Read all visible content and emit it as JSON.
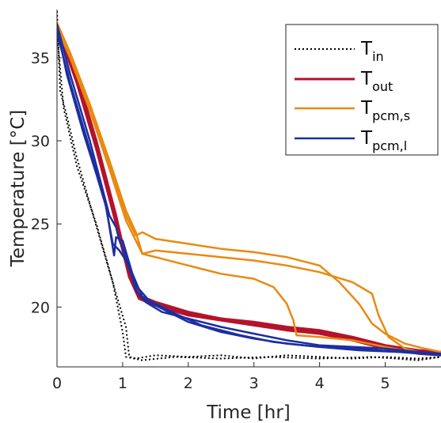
{
  "chart_data": {
    "type": "line",
    "xlabel": "Time [hr]",
    "ylabel": "Temperature [°C]",
    "xlim": [
      0,
      5.85
    ],
    "ylim": [
      16.4,
      37.9
    ],
    "x_ticks": [
      "0",
      "1",
      "2",
      "3",
      "4",
      "5"
    ],
    "y_ticks": [
      "20",
      "25",
      "30",
      "35"
    ],
    "grid": false,
    "legend_position": "top-right",
    "colors": {
      "T_in": "#000000",
      "T_out": "#b5122c",
      "T_pcm_s": "#e88a12",
      "T_pcm_l": "#1c2fa0"
    },
    "legend": [
      {
        "key": "T_in",
        "main": "T",
        "sub": "in",
        "style": "dotted"
      },
      {
        "key": "T_out",
        "main": "T",
        "sub": "out",
        "style": "solid"
      },
      {
        "key": "T_pcm_s",
        "main": "T",
        "sub": "pcm,s",
        "style": "solid"
      },
      {
        "key": "T_pcm_l",
        "main": "T",
        "sub": "pcm,l",
        "style": "solid"
      }
    ],
    "series": [
      {
        "key": "T_in",
        "width": 2,
        "dash": "2,3",
        "traces": [
          [
            [
              0,
              37.8
            ],
            [
              0.05,
              33
            ],
            [
              0.15,
              31.5
            ],
            [
              0.3,
              29
            ],
            [
              0.5,
              26.2
            ],
            [
              0.7,
              23.5
            ],
            [
              0.9,
              20.8
            ],
            [
              1.05,
              18.8
            ],
            [
              1.1,
              17
            ],
            [
              1.2,
              16.9
            ],
            [
              1.5,
              17.1
            ],
            [
              2,
              17
            ],
            [
              2.5,
              17.1
            ],
            [
              3,
              16.9
            ],
            [
              3.5,
              17.1
            ],
            [
              4,
              17
            ],
            [
              4.5,
              16.9
            ],
            [
              5,
              17
            ],
            [
              5.5,
              16.9
            ],
            [
              5.85,
              17
            ]
          ],
          [
            [
              0,
              36.5
            ],
            [
              0.1,
              32
            ],
            [
              0.3,
              28.5
            ],
            [
              0.6,
              25
            ],
            [
              0.85,
              21.5
            ],
            [
              1.0,
              18.5
            ],
            [
              1.05,
              17
            ],
            [
              1.3,
              16.8
            ],
            [
              1.8,
              17
            ],
            [
              2.5,
              16.9
            ],
            [
              3.2,
              17
            ],
            [
              4,
              16.9
            ],
            [
              4.8,
              17
            ],
            [
              5.5,
              16.8
            ],
            [
              5.85,
              17
            ]
          ]
        ]
      },
      {
        "key": "T_out",
        "width": 3,
        "traces": [
          [
            [
              0,
              37
            ],
            [
              0.3,
              34
            ],
            [
              0.6,
              30
            ],
            [
              0.9,
              25.5
            ],
            [
              1.1,
              22
            ],
            [
              1.25,
              20.6
            ],
            [
              1.5,
              20.2
            ],
            [
              2,
              19.6
            ],
            [
              2.5,
              19.3
            ],
            [
              3,
              19
            ],
            [
              3.5,
              18.7
            ],
            [
              4,
              18.5
            ],
            [
              4.5,
              18.1
            ],
            [
              5,
              17.6
            ],
            [
              5.5,
              17.3
            ],
            [
              5.85,
              17.2
            ]
          ],
          [
            [
              0,
              36.8
            ],
            [
              0.3,
              33.5
            ],
            [
              0.6,
              29.5
            ],
            [
              0.9,
              25
            ],
            [
              1.1,
              21.8
            ],
            [
              1.25,
              20.5
            ],
            [
              1.5,
              20.1
            ],
            [
              2,
              19.5
            ],
            [
              2.5,
              19.2
            ],
            [
              3,
              18.9
            ],
            [
              3.5,
              18.6
            ],
            [
              4,
              18.4
            ],
            [
              4.5,
              18
            ],
            [
              5,
              17.5
            ],
            [
              5.5,
              17.2
            ],
            [
              5.85,
              17.1
            ]
          ],
          [
            [
              0,
              36.9
            ],
            [
              0.3,
              33.8
            ],
            [
              0.6,
              29.8
            ],
            [
              0.9,
              25.2
            ],
            [
              1.1,
              22.2
            ],
            [
              1.25,
              20.7
            ],
            [
              1.5,
              20.3
            ],
            [
              2,
              19.7
            ],
            [
              2.5,
              19.3
            ],
            [
              3,
              19.1
            ],
            [
              3.5,
              18.8
            ],
            [
              4,
              18.6
            ],
            [
              4.5,
              18.2
            ],
            [
              5,
              17.7
            ],
            [
              5.5,
              17.4
            ],
            [
              5.85,
              17.3
            ]
          ]
        ]
      },
      {
        "key": "T_pcm_s",
        "width": 2.5,
        "traces": [
          [
            [
              0,
              37
            ],
            [
              0.2,
              35.2
            ],
            [
              0.5,
              32
            ],
            [
              0.8,
              28.5
            ],
            [
              1.05,
              25.5
            ],
            [
              1.2,
              24.3
            ],
            [
              1.3,
              24.5
            ],
            [
              1.5,
              24.1
            ],
            [
              2,
              23.8
            ],
            [
              2.5,
              23.5
            ],
            [
              3,
              23.3
            ],
            [
              3.5,
              23
            ],
            [
              4,
              22.5
            ],
            [
              4.3,
              21.5
            ],
            [
              4.6,
              20.2
            ],
            [
              4.8,
              19
            ],
            [
              5,
              18.4
            ],
            [
              5.3,
              17.8
            ],
            [
              5.6,
              17.5
            ],
            [
              5.85,
              17.3
            ]
          ],
          [
            [
              0,
              36.8
            ],
            [
              0.2,
              35
            ],
            [
              0.5,
              31.8
            ],
            [
              0.8,
              28.3
            ],
            [
              1.05,
              25.2
            ],
            [
              1.2,
              24
            ],
            [
              1.3,
              23.2
            ],
            [
              1.5,
              23.4
            ],
            [
              2,
              23.2
            ],
            [
              2.5,
              23
            ],
            [
              3,
              22.8
            ],
            [
              3.5,
              22.5
            ],
            [
              4,
              22.1
            ],
            [
              4.5,
              21.5
            ],
            [
              4.8,
              20.8
            ],
            [
              4.9,
              19.5
            ],
            [
              5.05,
              18.2
            ],
            [
              5.3,
              17.5
            ],
            [
              5.6,
              17.2
            ],
            [
              5.85,
              17.1
            ]
          ],
          [
            [
              0,
              37.1
            ],
            [
              0.2,
              35.3
            ],
            [
              0.5,
              32.2
            ],
            [
              0.8,
              28.8
            ],
            [
              1.05,
              25.8
            ],
            [
              1.2,
              24.5
            ],
            [
              1.3,
              23.2
            ],
            [
              1.5,
              23
            ],
            [
              2,
              22.5
            ],
            [
              2.5,
              22
            ],
            [
              3,
              21.7
            ],
            [
              3.3,
              21.2
            ],
            [
              3.5,
              20.2
            ],
            [
              3.6,
              19.2
            ],
            [
              3.65,
              18.3
            ],
            [
              4,
              18.2
            ],
            [
              4.5,
              18
            ],
            [
              5,
              17.6
            ],
            [
              5.4,
              17.3
            ],
            [
              5.85,
              17.2
            ]
          ]
        ]
      },
      {
        "key": "T_pcm_l",
        "width": 2.5,
        "traces": [
          [
            [
              0,
              37
            ],
            [
              0.2,
              34
            ],
            [
              0.5,
              30
            ],
            [
              0.8,
              25.5
            ],
            [
              0.9,
              24.8
            ],
            [
              0.95,
              24
            ],
            [
              1.0,
              23.5
            ],
            [
              1.1,
              22.5
            ],
            [
              1.2,
              21
            ],
            [
              1.35,
              20.3
            ],
            [
              1.6,
              19.7
            ],
            [
              2,
              19.3
            ],
            [
              2.5,
              18.8
            ],
            [
              3,
              18.4
            ],
            [
              3.5,
              18
            ],
            [
              4,
              17.7
            ],
            [
              4.5,
              17.6
            ],
            [
              5,
              17.5
            ],
            [
              5.5,
              17.3
            ],
            [
              5.85,
              17.2
            ]
          ],
          [
            [
              0,
              36.5
            ],
            [
              0.2,
              33.5
            ],
            [
              0.5,
              29.5
            ],
            [
              0.7,
              27
            ],
            [
              0.85,
              23.8
            ],
            [
              0.95,
              23.4
            ],
            [
              1.05,
              22.8
            ],
            [
              1.2,
              21.3
            ],
            [
              1.4,
              20.4
            ],
            [
              1.8,
              19.6
            ],
            [
              2.2,
              18.9
            ],
            [
              2.8,
              18.3
            ],
            [
              3.3,
              17.9
            ],
            [
              4,
              17.6
            ],
            [
              4.6,
              17.4
            ],
            [
              5.2,
              17.3
            ],
            [
              5.85,
              17.2
            ]
          ],
          [
            [
              0,
              36.8
            ],
            [
              0.15,
              34
            ],
            [
              0.4,
              30.5
            ],
            [
              0.6,
              28
            ],
            [
              0.75,
              26
            ],
            [
              0.82,
              24.3
            ],
            [
              0.87,
              23.1
            ],
            [
              0.9,
              24.2
            ],
            [
              1.0,
              24
            ],
            [
              1.15,
              22
            ],
            [
              1.3,
              20.6
            ],
            [
              1.5,
              20.1
            ],
            [
              2,
              19.1
            ],
            [
              2.5,
              18.5
            ],
            [
              3,
              18.1
            ],
            [
              3.5,
              17.8
            ],
            [
              4,
              17.6
            ],
            [
              4.6,
              17.5
            ],
            [
              5.2,
              17.3
            ],
            [
              5.85,
              17.1
            ]
          ]
        ]
      }
    ]
  }
}
